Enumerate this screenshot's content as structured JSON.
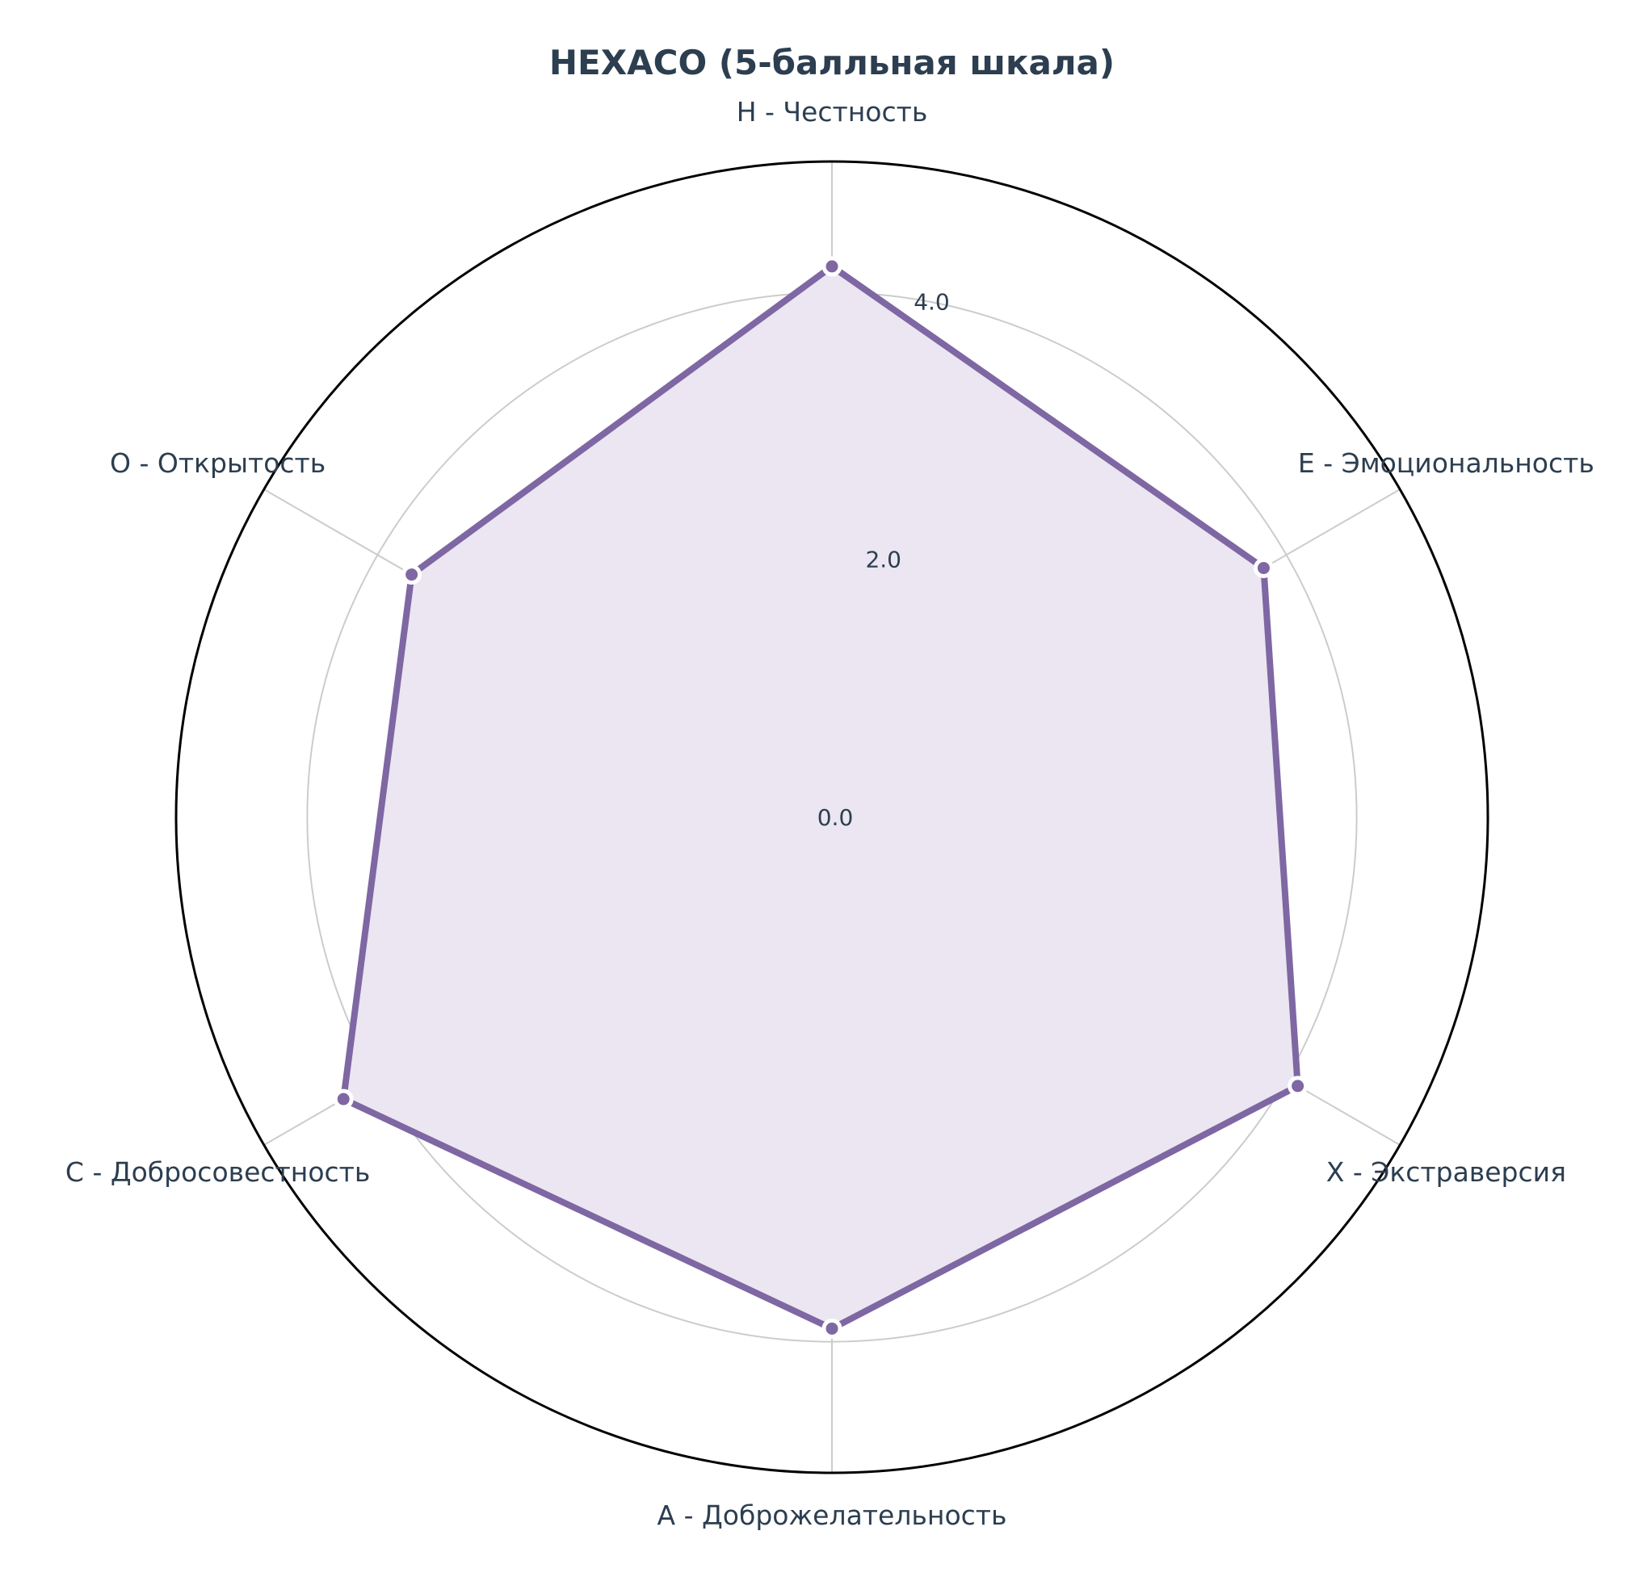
{
  "chart_data": {
    "type": "radar",
    "title": "HEXACO (5-балльная шкала)",
    "axes": [
      "H - Честность",
      "E - Эмоциональность",
      "X - Экстраверсия",
      "A - Доброжелательность",
      "C - Добросовестность",
      "O - Открытость"
    ],
    "values": [
      4.2,
      3.8,
      4.1,
      3.9,
      4.3,
      3.7
    ],
    "rlim": [
      0,
      5
    ],
    "ticks": [
      {
        "value": 0,
        "label": "0.0"
      },
      {
        "value": 2,
        "label": "2.0"
      },
      {
        "value": 4,
        "label": "4.0"
      }
    ],
    "grid_rings": [
      2,
      4
    ],
    "grid": true,
    "colors": {
      "series_line": "#7e67a3",
      "series_fill": "#ebe6f1",
      "marker_edge": "#ffffff",
      "text": "#2c3e50",
      "grid": "#cccccc",
      "frame": "#000000"
    }
  }
}
